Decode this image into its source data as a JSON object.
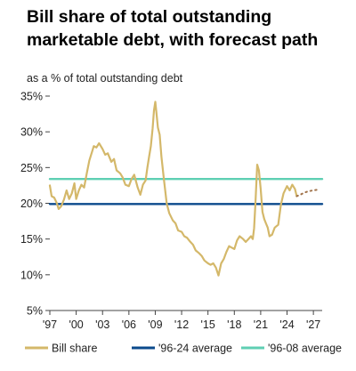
{
  "chart_data": {
    "type": "line",
    "title": "Bill share of total outstanding marketable debt, with forecast path",
    "subtitle": "as a % of total outstanding debt",
    "xlabel": "",
    "ylabel": "",
    "xlim": [
      1997,
      2028
    ],
    "ylim": [
      5,
      35
    ],
    "y_ticks": [
      5,
      10,
      15,
      20,
      25,
      30,
      35
    ],
    "y_tick_labels": [
      "5%",
      "10%",
      "15%",
      "20%",
      "25%",
      "30%",
      "35%"
    ],
    "x_ticks": [
      1997,
      2000,
      2003,
      2006,
      2009,
      2012,
      2015,
      2018,
      2021,
      2024,
      2027
    ],
    "x_tick_labels": [
      "'97",
      "'00",
      "'03",
      "'06",
      "'09",
      "'12",
      "'15",
      "'18",
      "'21",
      "'24",
      "'27"
    ],
    "grid": false,
    "legend_position": "bottom",
    "series": [
      {
        "name": "Bill share",
        "color": "#d4b86a",
        "style": "solid",
        "x": [
          1997.0,
          1997.2,
          1997.5,
          1997.8,
          1998.0,
          1998.3,
          1998.6,
          1998.9,
          1999.2,
          1999.5,
          1999.8,
          2000.0,
          2000.3,
          2000.6,
          2000.9,
          2001.2,
          2001.5,
          2001.8,
          2002.0,
          2002.3,
          2002.6,
          2003.0,
          2003.3,
          2003.6,
          2004.0,
          2004.3,
          2004.6,
          2005.0,
          2005.3,
          2005.6,
          2006.0,
          2006.3,
          2006.6,
          2007.0,
          2007.3,
          2007.6,
          2007.9,
          2008.1,
          2008.3,
          2008.5,
          2008.7,
          2008.85,
          2009.0,
          2009.15,
          2009.3,
          2009.5,
          2009.7,
          2010.0,
          2010.3,
          2010.6,
          2011.0,
          2011.3,
          2011.6,
          2012.0,
          2012.3,
          2012.6,
          2013.0,
          2013.3,
          2013.6,
          2014.0,
          2014.3,
          2014.6,
          2015.0,
          2015.3,
          2015.6,
          2015.9,
          2016.2,
          2016.5,
          2016.8,
          2017.1,
          2017.4,
          2017.7,
          2018.0,
          2018.3,
          2018.6,
          2019.0,
          2019.3,
          2019.6,
          2019.9,
          2020.1,
          2020.25,
          2020.4,
          2020.6,
          2020.8,
          2021.0,
          2021.2,
          2021.4,
          2021.6,
          2021.8,
          2022.0,
          2022.3,
          2022.6,
          2023.0,
          2023.3,
          2023.6,
          2024.0,
          2024.3,
          2024.6,
          2024.9,
          2025.1
        ],
        "values": [
          22.5,
          21.0,
          20.8,
          20.0,
          19.2,
          19.6,
          20.5,
          21.8,
          20.6,
          21.4,
          22.8,
          20.6,
          21.8,
          22.6,
          22.2,
          24.2,
          26.0,
          27.2,
          28.0,
          27.8,
          28.4,
          27.6,
          26.8,
          27.0,
          25.8,
          26.2,
          24.6,
          24.2,
          23.6,
          22.6,
          22.4,
          23.4,
          24.0,
          22.2,
          21.2,
          22.6,
          23.2,
          25.0,
          26.5,
          28.0,
          30.5,
          33.0,
          34.2,
          32.5,
          30.6,
          29.6,
          26.5,
          23.2,
          20.0,
          18.6,
          17.6,
          17.2,
          16.2,
          16.0,
          15.4,
          15.2,
          14.6,
          14.2,
          13.4,
          13.0,
          12.6,
          12.0,
          11.6,
          11.4,
          11.6,
          11.0,
          9.9,
          11.6,
          12.2,
          13.2,
          14.0,
          13.8,
          13.6,
          14.8,
          15.4,
          15.0,
          14.6,
          15.0,
          15.4,
          15.0,
          16.5,
          20.0,
          25.4,
          24.6,
          22.0,
          18.8,
          17.8,
          17.2,
          16.6,
          15.4,
          15.6,
          16.6,
          17.0,
          19.8,
          21.4,
          22.4,
          21.8,
          22.6,
          22.0,
          21.0
        ]
      },
      {
        "name": "",
        "color": "#a0724a",
        "style": "dotted",
        "x": [
          2025.1,
          2025.5,
          2026.0,
          2026.5,
          2027.0,
          2027.5
        ],
        "values": [
          21.0,
          21.2,
          21.5,
          21.7,
          21.8,
          21.9
        ]
      },
      {
        "name": "'96-24 average",
        "color": "#0b4a8c",
        "style": "solid",
        "x": [
          1997,
          2028
        ],
        "values": [
          19.9,
          19.9
        ]
      },
      {
        "name": "'96-08 average",
        "color": "#5fcfb3",
        "style": "solid",
        "x": [
          1997,
          2028
        ],
        "values": [
          23.4,
          23.4
        ]
      }
    ],
    "legend": [
      {
        "label": "Bill share",
        "color": "#d4b86a"
      },
      {
        "label": "'96-24 average",
        "color": "#0b4a8c"
      },
      {
        "label": "'96-08 average",
        "color": "#5fcfb3"
      }
    ]
  }
}
